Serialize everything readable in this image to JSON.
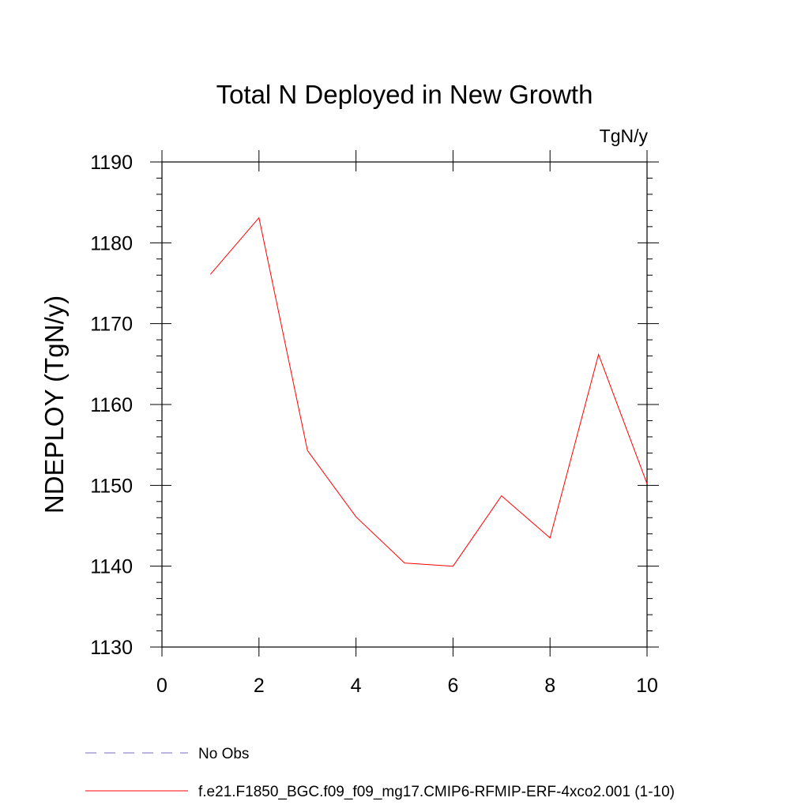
{
  "chart_data": {
    "type": "line",
    "title": "Total N Deployed in New Growth",
    "units": "TgN/y",
    "ylabel": "NDEPLOY  (TgN/y)",
    "xlabel": "",
    "xlim": [
      0,
      10
    ],
    "ylim": [
      1130,
      1190
    ],
    "xticks": [
      0,
      2,
      4,
      6,
      8,
      10
    ],
    "xtick_labels": [
      "0",
      "2",
      "4",
      "6",
      "8",
      "10"
    ],
    "yticks": [
      1130,
      1140,
      1150,
      1160,
      1170,
      1180,
      1190
    ],
    "ytick_labels": [
      "1130",
      "1140",
      "1150",
      "1160",
      "1170",
      "1180",
      "1190"
    ],
    "series": [
      {
        "name": "f.e21.F1850_BGC.f09_f09_mg17.CMIP6-RFMIP-ERF-4xco2.001 (1-10)",
        "color": "#ff0000",
        "x": [
          1,
          2,
          3,
          4,
          5,
          6,
          7,
          8,
          9,
          10
        ],
        "values": [
          1176.1,
          1183.1,
          1154.3,
          1146.1,
          1140.4,
          1140.0,
          1148.7,
          1143.5,
          1166.2,
          1150.2
        ]
      }
    ],
    "legend": [
      {
        "label": "No Obs",
        "style": "dashed",
        "color": "#7b68c8"
      },
      {
        "label": "f.e21.F1850_BGC.f09_f09_mg17.CMIP6-RFMIP-ERF-4xco2.001 (1-10)",
        "style": "solid",
        "color": "#ff0000"
      }
    ],
    "legend_position": "bottom-left"
  }
}
